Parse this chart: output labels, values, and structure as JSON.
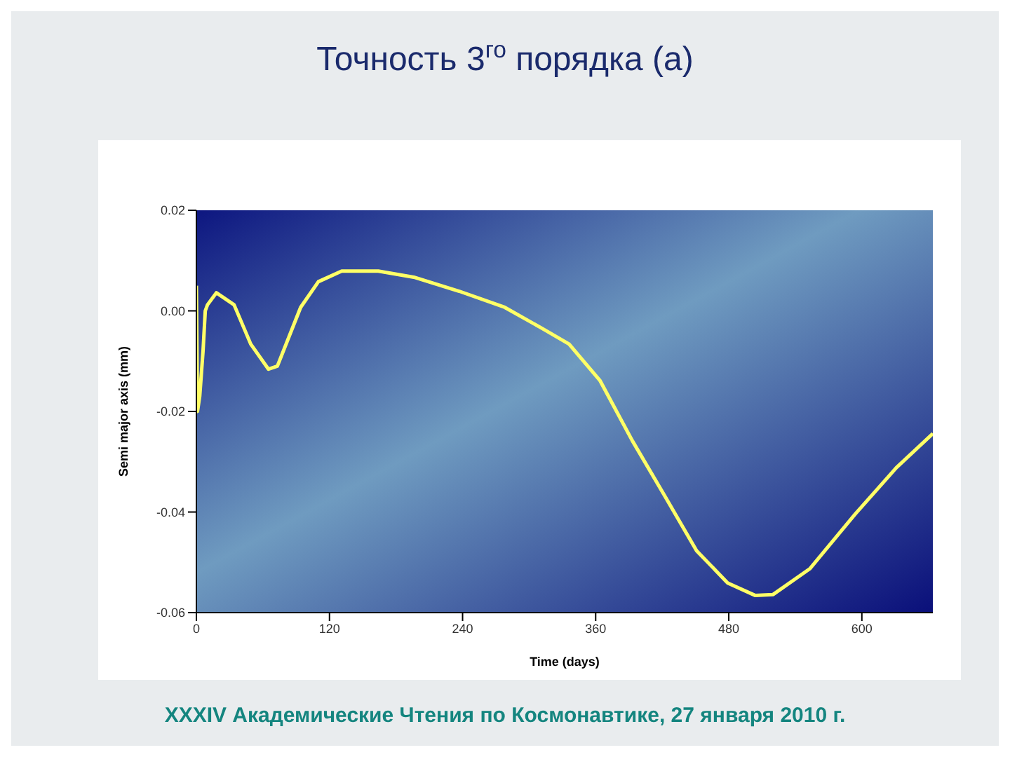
{
  "chart_data": {
    "type": "line",
    "title": "Точность 3$^{го}$ порядка (a)",
    "xlabel": "Time (days)",
    "ylabel": "Semi major axis (mm)",
    "annotations": [
      "XXXIV  Академические Чтения по Космонавтике,  27 января 2010 г."
    ],
    "xlim": [
      0,
      664
    ],
    "xticks": [
      0,
      120,
      240,
      360,
      480,
      600
    ],
    "ylim": [
      -0.06,
      0.02
    ],
    "yticks": [
      -0.06,
      -0.04,
      -0.02,
      {
        "value": 0,
        "label": "0.00"
      },
      0.02
    ],
    "grid": false,
    "marker": "none",
    "line_style": "solid",
    "series": [
      {
        "color": "#ffff66",
        "x": [
          0,
          1,
          3,
          6,
          8,
          10,
          18,
          34,
          49,
          65,
          73,
          94,
          110,
          131,
          164,
          196,
          237,
          278,
          311,
          336,
          364,
          393,
          422,
          451,
          479,
          504,
          520,
          553,
          594,
          631,
          664
        ],
        "values": [
          0.005,
          -0.02,
          -0.017,
          -0.008,
          0.0,
          0.0012,
          0.0036,
          0.0012,
          -0.0066,
          -0.0116,
          -0.011,
          0.0007,
          0.0058,
          0.0079,
          0.0079,
          0.0067,
          0.0039,
          0.0007,
          -0.0034,
          -0.0066,
          -0.0139,
          -0.0258,
          -0.0367,
          -0.0477,
          -0.0541,
          -0.0566,
          -0.0564,
          -0.0513,
          -0.0404,
          -0.0312,
          -0.0244
        ]
      }
    ]
  }
}
